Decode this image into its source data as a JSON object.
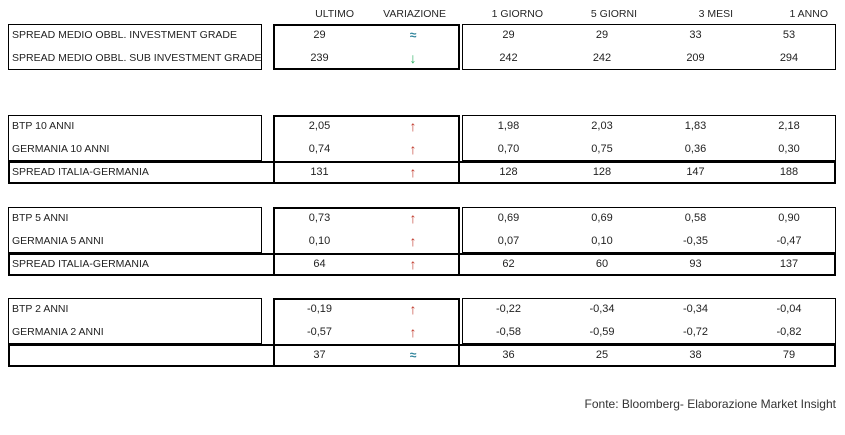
{
  "columns": [
    "ULTIMO",
    "VARIAZIONE",
    "1 GIORNO",
    "5 GIORNI",
    "3 MESI",
    "1 ANNO"
  ],
  "icons": {
    "up": {
      "name": "up-arrow-icon",
      "glyph": "↑",
      "color": "#c0392b"
    },
    "down": {
      "name": "down-arrow-icon",
      "glyph": "↓",
      "color": "#27ae60"
    },
    "approx": {
      "name": "approx-icon",
      "glyph": "≈",
      "color": "#31859c"
    }
  },
  "tables": [
    {
      "rows": [
        {
          "label": "SPREAD MEDIO OBBL. INVESTMENT GRADE",
          "ultimo": "29",
          "variazione": "approx",
          "values": [
            "29",
            "29",
            "33",
            "53"
          ],
          "spread_row": false
        },
        {
          "label": "SPREAD MEDIO OBBL. SUB INVESTMENT GRADE",
          "ultimo": "239",
          "variazione": "down",
          "values": [
            "242",
            "242",
            "209",
            "294"
          ],
          "spread_row": false
        }
      ]
    },
    {
      "rows": [
        {
          "label": "BTP 10 ANNI",
          "ultimo": "2,05",
          "variazione": "up",
          "values": [
            "1,98",
            "2,03",
            "1,83",
            "2,18"
          ],
          "spread_row": false
        },
        {
          "label": "GERMANIA 10 ANNI",
          "ultimo": "0,74",
          "variazione": "up",
          "values": [
            "0,70",
            "0,75",
            "0,36",
            "0,30"
          ],
          "spread_row": false
        },
        {
          "label": "SPREAD ITALIA-GERMANIA",
          "ultimo": "131",
          "variazione": "up",
          "values": [
            "128",
            "128",
            "147",
            "188"
          ],
          "spread_row": true
        }
      ]
    },
    {
      "rows": [
        {
          "label": "BTP 5 ANNI",
          "ultimo": "0,73",
          "variazione": "up",
          "values": [
            "0,69",
            "0,69",
            "0,58",
            "0,90"
          ],
          "spread_row": false
        },
        {
          "label": "GERMANIA 5 ANNI",
          "ultimo": "0,10",
          "variazione": "up",
          "values": [
            "0,07",
            "0,10",
            "-0,35",
            "-0,47"
          ],
          "spread_row": false
        },
        {
          "label": "SPREAD ITALIA-GERMANIA",
          "ultimo": "64",
          "variazione": "up",
          "values": [
            "62",
            "60",
            "93",
            "137"
          ],
          "spread_row": true
        }
      ]
    },
    {
      "rows": [
        {
          "label": "BTP 2 ANNI",
          "ultimo": "-0,19",
          "variazione": "up",
          "values": [
            "-0,22",
            "-0,34",
            "-0,34",
            "-0,04"
          ],
          "spread_row": false
        },
        {
          "label": "GERMANIA 2 ANNI",
          "ultimo": "-0,57",
          "variazione": "up",
          "values": [
            "-0,58",
            "-0,59",
            "-0,72",
            "-0,82"
          ],
          "spread_row": false
        },
        {
          "label": "",
          "ultimo": "37",
          "variazione": "approx",
          "values": [
            "36",
            "25",
            "38",
            "79"
          ],
          "spread_row": true
        }
      ]
    }
  ],
  "footer": {
    "source": "Fonte: Bloomberg- Elaborazione Market Insight"
  },
  "chart_data": {
    "type": "table",
    "columns": [
      "ULTIMO",
      "VARIAZIONE",
      "1 GIORNO",
      "5 GIORNI",
      "3 MESI",
      "1 ANNO"
    ],
    "sections": [
      {
        "rows": [
          {
            "label": "SPREAD MEDIO OBBL. INVESTMENT GRADE",
            "ultimo": 29,
            "variazione": "stable",
            "giorno_1": 29,
            "giorni_5": 29,
            "mesi_3": 33,
            "anno_1": 53
          },
          {
            "label": "SPREAD MEDIO OBBL. SUB INVESTMENT GRADE",
            "ultimo": 239,
            "variazione": "down",
            "giorno_1": 242,
            "giorni_5": 242,
            "mesi_3": 209,
            "anno_1": 294
          }
        ]
      },
      {
        "rows": [
          {
            "label": "BTP 10 ANNI",
            "ultimo": 2.05,
            "variazione": "up",
            "giorno_1": 1.98,
            "giorni_5": 2.03,
            "mesi_3": 1.83,
            "anno_1": 2.18
          },
          {
            "label": "GERMANIA 10 ANNI",
            "ultimo": 0.74,
            "variazione": "up",
            "giorno_1": 0.7,
            "giorni_5": 0.75,
            "mesi_3": 0.36,
            "anno_1": 0.3
          },
          {
            "label": "SPREAD ITALIA-GERMANIA",
            "ultimo": 131,
            "variazione": "up",
            "giorno_1": 128,
            "giorni_5": 128,
            "mesi_3": 147,
            "anno_1": 188
          }
        ]
      },
      {
        "rows": [
          {
            "label": "BTP 5 ANNI",
            "ultimo": 0.73,
            "variazione": "up",
            "giorno_1": 0.69,
            "giorni_5": 0.69,
            "mesi_3": 0.58,
            "anno_1": 0.9
          },
          {
            "label": "GERMANIA 5 ANNI",
            "ultimo": 0.1,
            "variazione": "up",
            "giorno_1": 0.07,
            "giorni_5": 0.1,
            "mesi_3": -0.35,
            "anno_1": -0.47
          },
          {
            "label": "SPREAD ITALIA-GERMANIA",
            "ultimo": 64,
            "variazione": "up",
            "giorno_1": 62,
            "giorni_5": 60,
            "mesi_3": 93,
            "anno_1": 137
          }
        ]
      },
      {
        "rows": [
          {
            "label": "BTP 2 ANNI",
            "ultimo": -0.19,
            "variazione": "up",
            "giorno_1": -0.22,
            "giorni_5": -0.34,
            "mesi_3": -0.34,
            "anno_1": -0.04
          },
          {
            "label": "GERMANIA 2 ANNI",
            "ultimo": -0.57,
            "variazione": "up",
            "giorno_1": -0.58,
            "giorni_5": -0.59,
            "mesi_3": -0.72,
            "anno_1": -0.82
          },
          {
            "label": "",
            "ultimo": 37,
            "variazione": "stable",
            "giorno_1": 36,
            "giorni_5": 25,
            "mesi_3": 38,
            "anno_1": 79
          }
        ]
      }
    ],
    "source": "Fonte: Bloomberg- Elaborazione Market Insight"
  }
}
